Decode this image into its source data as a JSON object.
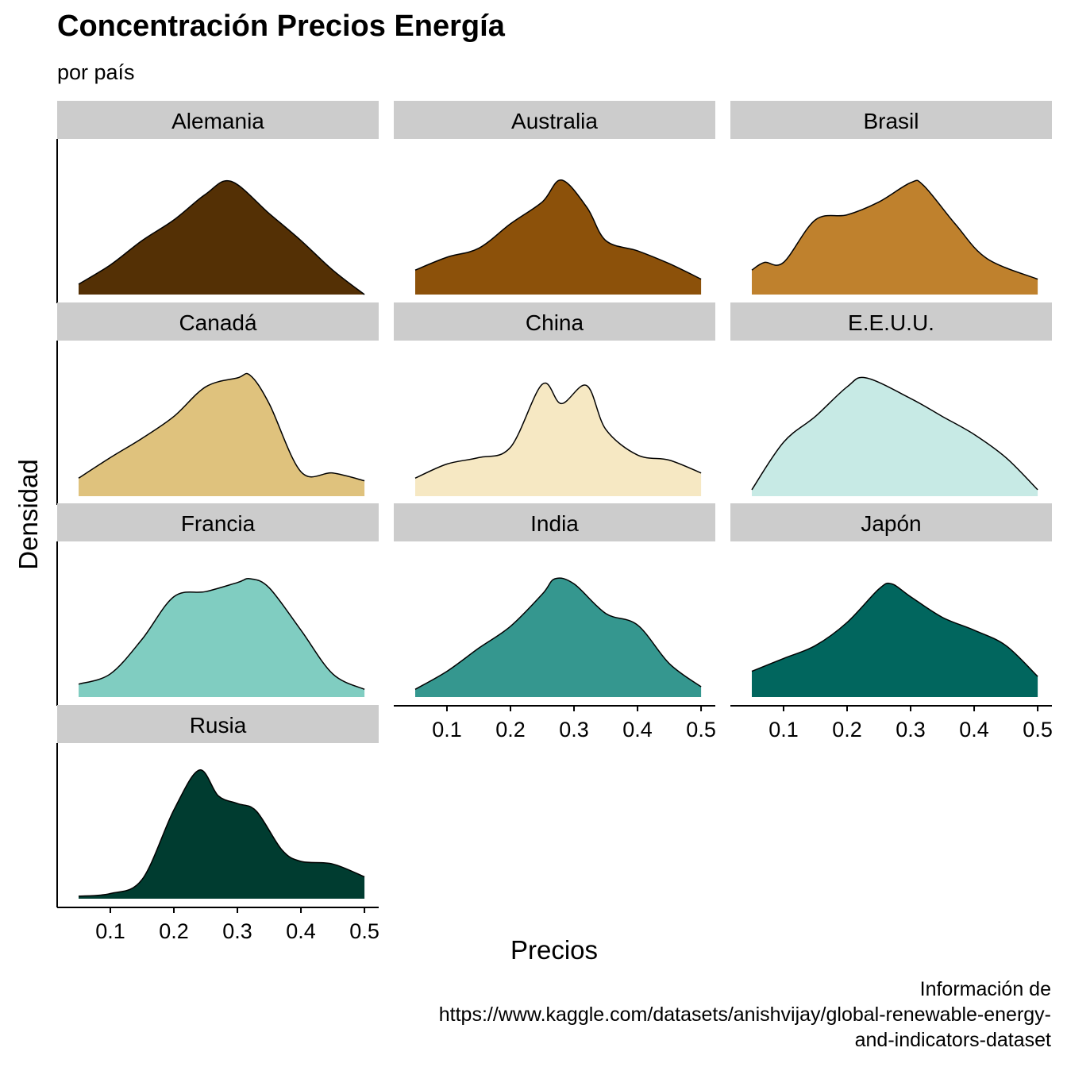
{
  "header": {
    "title": "Concentración Precios Energía",
    "subtitle": "por país"
  },
  "caption": "Información de \nhttps://www.kaggle.com/datasets/anishvijay/global-renewable-energy-\nand-indicators-dataset",
  "chart_data": {
    "type": "area",
    "subtype": "faceted density plot",
    "xlabel": "Precios",
    "ylabel": "Densidad",
    "x_ticks": [
      0.1,
      0.2,
      0.3,
      0.4,
      0.5
    ],
    "xlim": [
      0.05,
      0.5
    ],
    "y_scale": "free per panel, no y tick labels",
    "grid": false,
    "facets": [
      {
        "name": "Alemania",
        "color": "#543005",
        "x": [
          0.05,
          0.1,
          0.15,
          0.2,
          0.25,
          0.29,
          0.35,
          0.4,
          0.45,
          0.5
        ],
        "density": [
          0.08,
          0.23,
          0.42,
          0.58,
          0.78,
          0.88,
          0.63,
          0.42,
          0.19,
          0.0
        ]
      },
      {
        "name": "Australia",
        "color": "#8C510A",
        "x": [
          0.05,
          0.1,
          0.15,
          0.2,
          0.25,
          0.28,
          0.32,
          0.35,
          0.4,
          0.45,
          0.5
        ],
        "density": [
          0.19,
          0.29,
          0.36,
          0.55,
          0.72,
          0.89,
          0.68,
          0.42,
          0.34,
          0.24,
          0.12
        ]
      },
      {
        "name": "Brasil",
        "color": "#BF812D",
        "x": [
          0.05,
          0.07,
          0.1,
          0.15,
          0.2,
          0.25,
          0.3,
          0.32,
          0.37,
          0.42,
          0.5
        ],
        "density": [
          0.19,
          0.25,
          0.25,
          0.58,
          0.62,
          0.72,
          0.87,
          0.85,
          0.55,
          0.28,
          0.12
        ]
      },
      {
        "name": "Canadá",
        "color": "#DFC27D",
        "x": [
          0.05,
          0.1,
          0.15,
          0.2,
          0.25,
          0.3,
          0.32,
          0.35,
          0.4,
          0.45,
          0.5
        ],
        "density": [
          0.14,
          0.3,
          0.45,
          0.62,
          0.85,
          0.92,
          0.94,
          0.72,
          0.19,
          0.18,
          0.12
        ]
      },
      {
        "name": "China",
        "color": "#F6E8C3",
        "x": [
          0.05,
          0.1,
          0.15,
          0.2,
          0.25,
          0.28,
          0.32,
          0.35,
          0.4,
          0.45,
          0.5
        ],
        "density": [
          0.14,
          0.25,
          0.3,
          0.38,
          0.87,
          0.72,
          0.86,
          0.52,
          0.32,
          0.28,
          0.18
        ]
      },
      {
        "name": "E.E.U.U.",
        "color": "#C7EAE5",
        "x": [
          0.05,
          0.1,
          0.15,
          0.2,
          0.23,
          0.3,
          0.35,
          0.4,
          0.45,
          0.5
        ],
        "density": [
          0.05,
          0.42,
          0.62,
          0.85,
          0.92,
          0.76,
          0.62,
          0.48,
          0.3,
          0.05
        ]
      },
      {
        "name": "Francia",
        "color": "#80CDC1",
        "x": [
          0.05,
          0.1,
          0.15,
          0.2,
          0.25,
          0.3,
          0.32,
          0.35,
          0.4,
          0.45,
          0.5
        ],
        "density": [
          0.1,
          0.18,
          0.45,
          0.78,
          0.82,
          0.89,
          0.92,
          0.85,
          0.52,
          0.18,
          0.06
        ]
      },
      {
        "name": "India",
        "color": "#35978F",
        "x": [
          0.05,
          0.1,
          0.15,
          0.2,
          0.25,
          0.27,
          0.3,
          0.35,
          0.4,
          0.45,
          0.5
        ],
        "density": [
          0.06,
          0.2,
          0.38,
          0.55,
          0.8,
          0.92,
          0.88,
          0.65,
          0.56,
          0.26,
          0.08
        ]
      },
      {
        "name": "Japón",
        "color": "#01665E",
        "x": [
          0.05,
          0.1,
          0.15,
          0.2,
          0.25,
          0.27,
          0.3,
          0.35,
          0.4,
          0.45,
          0.5
        ],
        "density": [
          0.2,
          0.3,
          0.4,
          0.58,
          0.84,
          0.88,
          0.78,
          0.62,
          0.52,
          0.4,
          0.16
        ]
      },
      {
        "name": "Rusia",
        "color": "#003C30",
        "x": [
          0.05,
          0.1,
          0.15,
          0.2,
          0.24,
          0.27,
          0.3,
          0.33,
          0.37,
          0.4,
          0.45,
          0.5
        ],
        "density": [
          0.02,
          0.04,
          0.15,
          0.69,
          1.0,
          0.8,
          0.74,
          0.68,
          0.38,
          0.29,
          0.27,
          0.17
        ]
      }
    ]
  }
}
